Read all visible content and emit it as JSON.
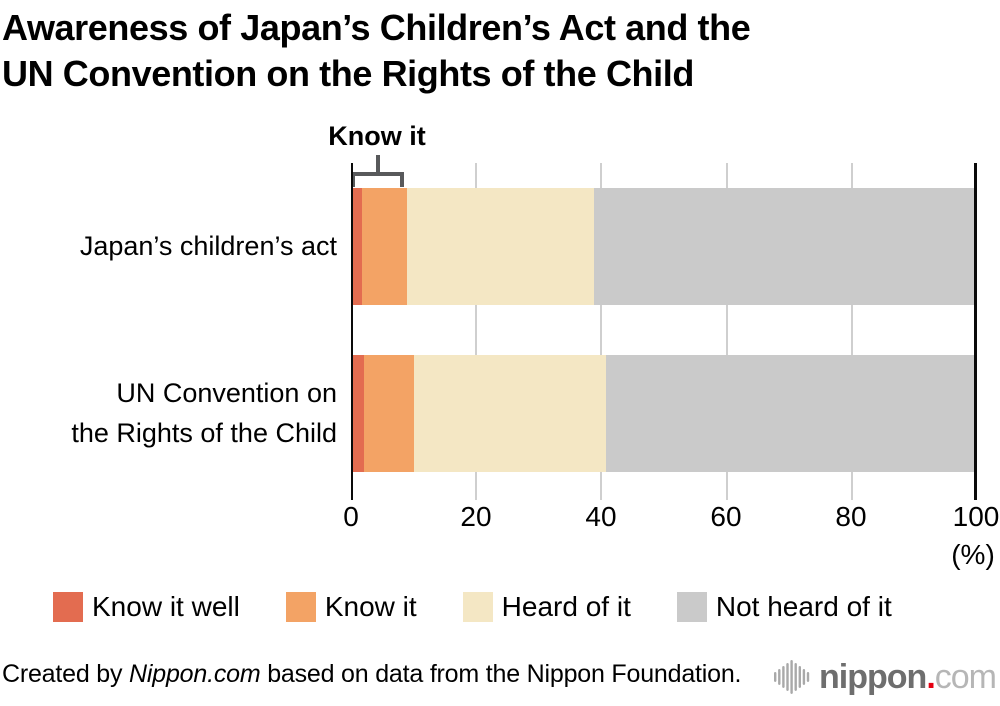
{
  "title": {
    "line1": "Awareness of Japan’s Children’s Act and the",
    "line2": "UN Convention on the Rights of the Child"
  },
  "annotation": {
    "label": "Know it"
  },
  "chart_data": {
    "type": "bar",
    "orientation": "horizontal",
    "stacked": true,
    "title": "Awareness of Japan’s Children’s Act and the UN Convention on the Rights of the Child",
    "categories": [
      "Japan’s children’s act",
      "UN Convention on the Rights of the Child"
    ],
    "category_label_lines": [
      [
        "Japan’s children’s act"
      ],
      [
        "UN Convention on",
        "the Rights of the Child"
      ]
    ],
    "series": [
      {
        "name": "Know it well",
        "color": "#e36c50",
        "values": [
          1.5,
          1.7
        ]
      },
      {
        "name": "Know it",
        "color": "#f3a365",
        "values": [
          7.2,
          8.1
        ]
      },
      {
        "name": "Heard of it",
        "color": "#f4e7c4",
        "values": [
          30.0,
          30.8
        ]
      },
      {
        "name": "Not heard of it",
        "color": "#cacaca",
        "values": [
          61.3,
          59.4
        ]
      }
    ],
    "x_axis": {
      "range": [
        0,
        100
      ],
      "ticks": [
        0,
        20,
        40,
        60,
        80,
        100
      ],
      "unit_label": "(%)"
    },
    "grid": true,
    "legend_position": "bottom",
    "annotation_bracket": {
      "label": "Know it",
      "category_index": 0,
      "covers_series": [
        "Know it well",
        "Know it"
      ]
    }
  },
  "footer": {
    "credit_prefix": "Created by ",
    "credit_source": "Nippon.com",
    "credit_suffix": " based on data from the Nippon Foundation.",
    "logo": {
      "icon": "soundwave-icon",
      "name": "nippon",
      "dot": ".",
      "tld": "com",
      "name_color": "#6e6e6e",
      "dot_color": "#e60012",
      "tld_color": "#b6b6b6",
      "icon_color": "#a9a9a9"
    }
  }
}
